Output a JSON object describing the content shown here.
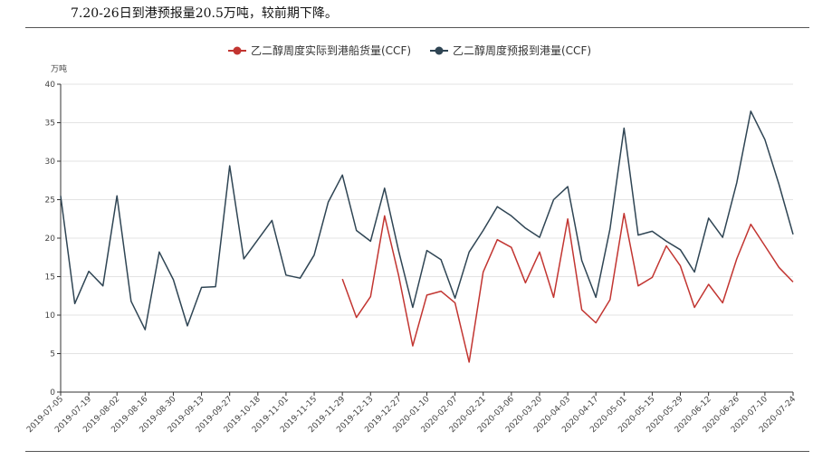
{
  "document": {
    "caption": "7.20-26日到港预报量20.5万吨，较前期下降。"
  },
  "chart_data": {
    "type": "line",
    "ylabel": "万吨",
    "ylim": [
      0,
      40
    ],
    "yticks": [
      0,
      5,
      10,
      15,
      20,
      25,
      30,
      35,
      40
    ],
    "grid": true,
    "legend_position": "top",
    "x": [
      "2019-07-05",
      "2019-07-12",
      "2019-07-19",
      "2019-07-26",
      "2019-08-02",
      "2019-08-09",
      "2019-08-16",
      "2019-08-23",
      "2019-08-30",
      "2019-09-06",
      "2019-09-13",
      "2019-09-20",
      "2019-09-27",
      "2019-10-11",
      "2019-10-18",
      "2019-10-25",
      "2019-11-01",
      "2019-11-08",
      "2019-11-15",
      "2019-11-22",
      "2019-11-29",
      "2019-12-06",
      "2019-12-13",
      "2019-12-20",
      "2019-12-27",
      "2020-01-03",
      "2020-01-10",
      "2020-01-17",
      "2020-02-07",
      "2020-02-14",
      "2020-02-21",
      "2020-02-28",
      "2020-03-06",
      "2020-03-13",
      "2020-03-20",
      "2020-03-27",
      "2020-04-03",
      "2020-04-10",
      "2020-04-17",
      "2020-04-24",
      "2020-05-01",
      "2020-05-08",
      "2020-05-15",
      "2020-05-22",
      "2020-05-29",
      "2020-06-05",
      "2020-06-12",
      "2020-06-19",
      "2020-06-26",
      "2020-07-03",
      "2020-07-10",
      "2020-07-17",
      "2020-07-24"
    ],
    "x_tick_labels": [
      "2019-07-05",
      "2019-07-19",
      "2019-08-02",
      "2019-08-16",
      "2019-08-30",
      "2019-09-13",
      "2019-09-27",
      "2019-10-18",
      "2019-11-01",
      "2019-11-15",
      "2019-11-29",
      "2019-12-13",
      "2019-12-27",
      "2020-01-10",
      "2020-02-07",
      "2020-02-21",
      "2020-03-06",
      "2020-03-20",
      "2020-04-03",
      "2020-04-17",
      "2020-05-01",
      "2020-05-15",
      "2020-05-29",
      "2020-06-12",
      "2020-06-26",
      "2020-07-10",
      "2020-07-24"
    ],
    "series": [
      {
        "name": "乙二醇周度实际到港船货量(CCF)",
        "color": "#c23531",
        "values": [
          null,
          null,
          null,
          null,
          null,
          null,
          null,
          null,
          null,
          null,
          null,
          null,
          null,
          null,
          null,
          null,
          null,
          null,
          null,
          null,
          14.7,
          9.7,
          12.4,
          22.9,
          15.1,
          6.0,
          12.6,
          13.1,
          11.6,
          3.9,
          15.6,
          19.8,
          18.8,
          14.2,
          18.2,
          12.3,
          22.5,
          10.7,
          9.0,
          12.0,
          23.2,
          13.8,
          14.9,
          19.0,
          16.4,
          11.0,
          14.0,
          11.6,
          17.3,
          21.8,
          19.0,
          16.2,
          14.3
        ]
      },
      {
        "name": "乙二醇周度预报到港量(CCF)",
        "color": "#2f4554",
        "values": [
          25.5,
          11.5,
          15.7,
          13.8,
          25.5,
          11.8,
          8.1,
          18.2,
          14.6,
          8.6,
          13.6,
          13.7,
          29.4,
          17.3,
          19.8,
          22.3,
          15.2,
          14.8,
          17.8,
          24.7,
          28.2,
          21.0,
          19.6,
          26.5,
          18.3,
          11.0,
          18.4,
          17.2,
          12.2,
          18.2,
          21.0,
          24.1,
          22.9,
          21.3,
          20.1,
          25.0,
          26.7,
          17.1,
          12.3,
          21.2,
          34.3,
          20.4,
          20.9,
          19.6,
          18.5,
          15.6,
          22.6,
          20.1,
          27.2,
          36.5,
          32.8,
          27.0,
          20.5
        ]
      }
    ]
  }
}
